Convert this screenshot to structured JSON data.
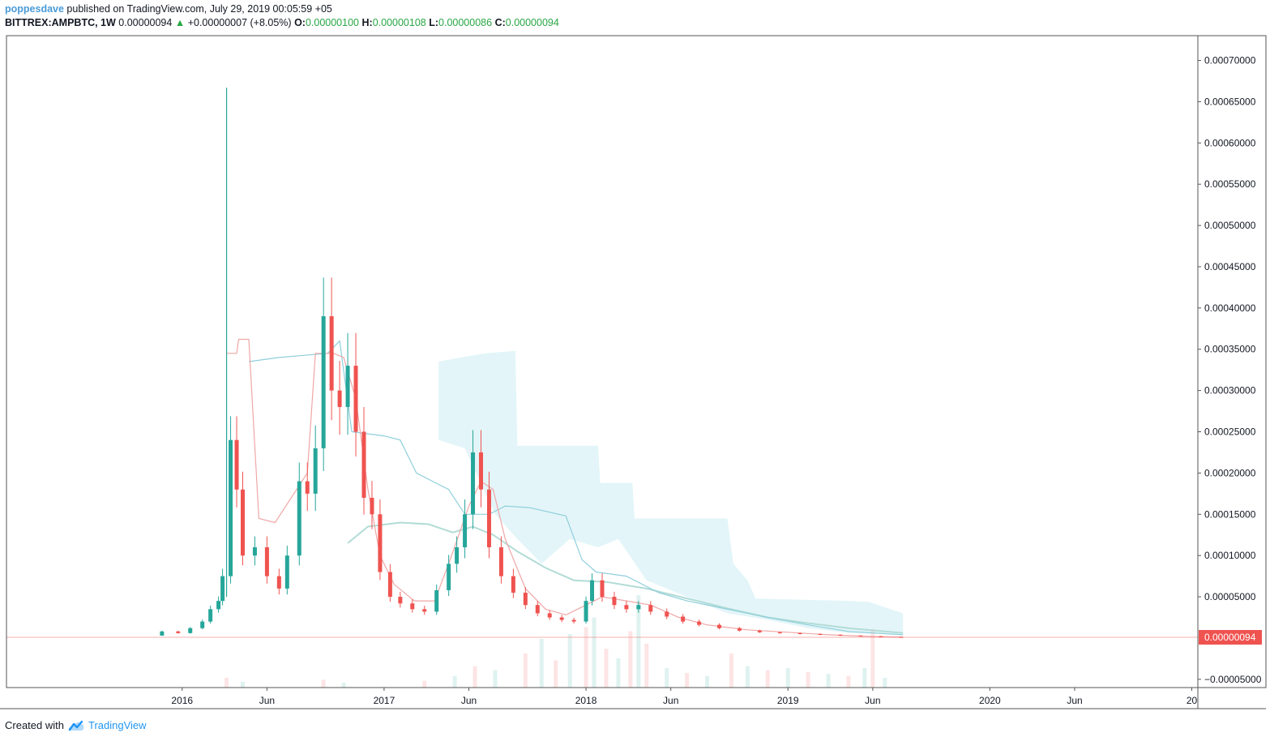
{
  "header": {
    "user": "poppesdave",
    "published_text": "published on TradingView.com, July 29, 2019 00:05:59 +05",
    "symbol": "BITTREX:AMPBTC, 1W",
    "last": "0.00000094",
    "change": "+0.00000007 (+8.05%)",
    "o_label": "O:",
    "o_value": "0.00000100",
    "h_label": "H:",
    "h_value": "0.00000108",
    "l_label": "L:",
    "l_value": "0.00000086",
    "c_label": "C:",
    "c_value": "0.00000094"
  },
  "footer": {
    "created_with": "Created with",
    "brand": "TradingView",
    "logo_icon": "tradingview-cloud-icon"
  },
  "colors": {
    "up": "#26a69a",
    "down": "#ef5350",
    "cloud": "#e3f5f8",
    "line_red": "#f0a6a6",
    "line_blue": "#8fcfdc",
    "line_sma": "#b2dcd6",
    "price_label_bg": "#ef5350",
    "grid_border": "#555555"
  },
  "chart_data": {
    "type": "candlestick",
    "timeframe": "1W",
    "symbol": "BITTREX:AMPBTC",
    "y_axis": {
      "ticks": [
        "0.00070000",
        "0.00065000",
        "0.00060000",
        "0.00055000",
        "0.00050000",
        "0.00045000",
        "0.00040000",
        "0.00035000",
        "0.00030000",
        "0.00025000",
        "0.00020000",
        "0.00015000",
        "0.00010000",
        "0.00005000",
        "−0.00005000"
      ],
      "tick_values": [
        0.0007,
        0.00065,
        0.0006,
        0.00055,
        0.0005,
        0.00045,
        0.0004,
        0.00035,
        0.0003,
        0.00025,
        0.0002,
        0.00015,
        0.0001,
        5e-05,
        -5e-05
      ],
      "range": [
        -6e-05,
        0.00073
      ]
    },
    "x_axis": {
      "ticks": [
        "2016",
        "Jun",
        "2017",
        "Jun",
        "2018",
        "Jun",
        "2019",
        "Jun",
        "2020",
        "Jun",
        "20"
      ],
      "tick_values": [
        2016.0,
        2016.42,
        2017.0,
        2017.42,
        2018.0,
        2018.42,
        2019.0,
        2019.42,
        2020.0,
        2020.42,
        2021.0
      ],
      "range": [
        2015.13,
        2021.03
      ]
    },
    "current_price": 9.4e-07,
    "current_price_label": "0.00000094",
    "price_series": [
      [
        2015.82,
        3e-06
      ],
      [
        2015.9,
        8e-06
      ],
      [
        2015.98,
        6e-06
      ],
      [
        2016.04,
        1.2e-05
      ],
      [
        2016.1,
        2e-05
      ],
      [
        2016.14,
        3.5e-05
      ],
      [
        2016.18,
        4.5e-05
      ],
      [
        2016.2,
        7.5e-05
      ],
      [
        2016.24,
        0.00024
      ],
      [
        2016.27,
        0.00018
      ],
      [
        2016.3,
        0.0001
      ],
      [
        2016.36,
        0.00011
      ],
      [
        2016.42,
        7.5e-05
      ],
      [
        2016.48,
        6e-05
      ],
      [
        2016.52,
        0.0001
      ],
      [
        2016.58,
        0.00019
      ],
      [
        2016.62,
        0.000175
      ],
      [
        2016.66,
        0.00023
      ],
      [
        2016.7,
        0.00039
      ],
      [
        2016.74,
        0.0003
      ],
      [
        2016.78,
        0.00028
      ],
      [
        2016.82,
        0.00033
      ],
      [
        2016.86,
        0.00025
      ],
      [
        2016.9,
        0.00017
      ],
      [
        2016.94,
        0.00015
      ],
      [
        2016.98,
        8e-05
      ],
      [
        2017.03,
        5e-05
      ],
      [
        2017.08,
        4.2e-05
      ],
      [
        2017.14,
        3.5e-05
      ],
      [
        2017.2,
        3.2e-05
      ],
      [
        2017.26,
        5.8e-05
      ],
      [
        2017.32,
        9e-05
      ],
      [
        2017.36,
        0.00011
      ],
      [
        2017.4,
        0.00015
      ],
      [
        2017.44,
        0.000225
      ],
      [
        2017.48,
        0.00018
      ],
      [
        2017.52,
        0.00011
      ],
      [
        2017.58,
        7.5e-05
      ],
      [
        2017.64,
        5.5e-05
      ],
      [
        2017.7,
        4e-05
      ],
      [
        2017.76,
        3e-05
      ],
      [
        2017.82,
        2.5e-05
      ],
      [
        2017.88,
        2.2e-05
      ],
      [
        2017.94,
        2e-05
      ],
      [
        2018.0,
        4.5e-05
      ],
      [
        2018.03,
        7e-05
      ],
      [
        2018.08,
        5e-05
      ],
      [
        2018.14,
        4e-05
      ],
      [
        2018.2,
        3.5e-05
      ],
      [
        2018.26,
        4e-05
      ],
      [
        2018.32,
        3.2e-05
      ],
      [
        2018.4,
        2.6e-05
      ],
      [
        2018.48,
        2e-05
      ],
      [
        2018.56,
        1.6e-05
      ],
      [
        2018.66,
        1.2e-05
      ],
      [
        2018.76,
        9e-06
      ],
      [
        2018.86,
        7e-06
      ],
      [
        2018.96,
        6e-06
      ],
      [
        2019.06,
        5e-06
      ],
      [
        2019.16,
        4e-06
      ],
      [
        2019.26,
        3e-06
      ],
      [
        2019.36,
        2.2e-06
      ],
      [
        2019.46,
        1.5e-06
      ],
      [
        2019.56,
        9.4e-07
      ]
    ],
    "spike": {
      "x": 2016.22,
      "high": 0.000667,
      "low": 5e-05
    },
    "red_line": [
      [
        2016.22,
        0.000345
      ],
      [
        2016.27,
        0.000345
      ],
      [
        2016.28,
        0.000362
      ],
      [
        2016.33,
        0.000362
      ],
      [
        2016.38,
        0.000145
      ],
      [
        2016.46,
        0.00014
      ],
      [
        2016.62,
        0.0002
      ],
      [
        2016.66,
        0.000345
      ],
      [
        2016.75,
        0.000345
      ],
      [
        2016.8,
        0.00034
      ],
      [
        2016.86,
        0.00029
      ],
      [
        2016.92,
        0.00018
      ],
      [
        2016.98,
        0.0001
      ],
      [
        2017.05,
        6.5e-05
      ],
      [
        2017.15,
        4.5e-05
      ],
      [
        2017.25,
        4.5e-05
      ],
      [
        2017.32,
        9e-05
      ],
      [
        2017.42,
        0.00016
      ],
      [
        2017.48,
        0.00019
      ],
      [
        2017.54,
        0.00018
      ],
      [
        2017.6,
        0.00012
      ],
      [
        2017.7,
        6e-05
      ],
      [
        2017.8,
        3.5e-05
      ],
      [
        2017.9,
        2.8e-05
      ],
      [
        2018.0,
        4e-05
      ],
      [
        2018.08,
        5e-05
      ],
      [
        2018.2,
        4.5e-05
      ],
      [
        2018.32,
        4e-05
      ],
      [
        2018.46,
        2.5e-05
      ],
      [
        2018.6,
        1.6e-05
      ],
      [
        2018.8,
        1e-05
      ],
      [
        2019.0,
        7e-06
      ],
      [
        2019.2,
        4e-06
      ],
      [
        2019.4,
        2e-06
      ],
      [
        2019.57,
        1e-06
      ]
    ],
    "blue_line": [
      [
        2016.33,
        0.000335
      ],
      [
        2016.48,
        0.00034
      ],
      [
        2016.72,
        0.000345
      ],
      [
        2016.78,
        0.00036
      ],
      [
        2016.84,
        0.00025
      ],
      [
        2017.0,
        0.000245
      ],
      [
        2017.08,
        0.00024
      ],
      [
        2017.16,
        0.0002
      ],
      [
        2017.24,
        0.00019
      ],
      [
        2017.32,
        0.00018
      ],
      [
        2017.4,
        0.00015
      ],
      [
        2017.52,
        0.00015
      ],
      [
        2017.6,
        0.00016
      ],
      [
        2017.72,
        0.000158
      ],
      [
        2017.9,
        0.000148
      ],
      [
        2017.98,
        9.5e-05
      ],
      [
        2018.05,
        8e-05
      ],
      [
        2018.2,
        7.5e-05
      ],
      [
        2018.36,
        5.5e-05
      ],
      [
        2018.5,
        4.5e-05
      ],
      [
        2018.7,
        3.5e-05
      ],
      [
        2018.9,
        2.5e-05
      ],
      [
        2019.1,
        1.6e-05
      ],
      [
        2019.3,
        8e-06
      ],
      [
        2019.57,
        4e-06
      ]
    ],
    "sma_line": [
      [
        2016.82,
        0.000115
      ],
      [
        2016.92,
        0.000135
      ],
      [
        2017.08,
        0.00014
      ],
      [
        2017.22,
        0.000138
      ],
      [
        2017.34,
        0.000128
      ],
      [
        2017.44,
        0.000135
      ],
      [
        2017.54,
        0.000125
      ],
      [
        2017.66,
        0.000105
      ],
      [
        2017.8,
        8.5e-05
      ],
      [
        2017.94,
        7e-05
      ],
      [
        2018.1,
        6.8e-05
      ],
      [
        2018.3,
        6e-05
      ],
      [
        2018.5,
        4.8e-05
      ],
      [
        2018.7,
        3.6e-05
      ],
      [
        2018.9,
        2.5e-05
      ],
      [
        2019.1,
        1.8e-05
      ],
      [
        2019.3,
        1.2e-05
      ],
      [
        2019.57,
        6e-06
      ]
    ],
    "cloud_top": [
      [
        2017.27,
        0.000335
      ],
      [
        2017.38,
        0.00034
      ],
      [
        2017.5,
        0.000345
      ],
      [
        2017.65,
        0.000348
      ],
      [
        2017.66,
        0.000233
      ],
      [
        2018.06,
        0.000233
      ],
      [
        2018.07,
        0.000188
      ],
      [
        2018.23,
        0.000188
      ],
      [
        2018.24,
        0.000145
      ],
      [
        2018.7,
        0.000145
      ],
      [
        2018.73,
        9e-05
      ],
      [
        2018.8,
        7e-05
      ],
      [
        2018.84,
        4.8e-05
      ],
      [
        2019.3,
        4.5e-05
      ],
      [
        2019.4,
        4.4e-05
      ],
      [
        2019.57,
        3e-05
      ]
    ],
    "cloud_bottom": [
      [
        2017.27,
        0.00024
      ],
      [
        2017.4,
        0.00023
      ],
      [
        2017.55,
        0.00015
      ],
      [
        2017.66,
        0.00012
      ],
      [
        2017.78,
        9e-05
      ],
      [
        2017.92,
        0.00012
      ],
      [
        2018.06,
        0.00011
      ],
      [
        2018.16,
        0.00012
      ],
      [
        2018.3,
        7e-05
      ],
      [
        2018.5,
        5e-05
      ],
      [
        2018.7,
        3e-05
      ],
      [
        2018.9,
        2.2e-05
      ],
      [
        2019.1,
        1.2e-05
      ],
      [
        2019.3,
        6e-06
      ],
      [
        2019.57,
        4e-06
      ]
    ],
    "volume_bars": [
      [
        2016.22,
        0.1
      ],
      [
        2016.3,
        0.06
      ],
      [
        2016.7,
        0.08
      ],
      [
        2016.8,
        0.05
      ],
      [
        2017.2,
        0.07
      ],
      [
        2017.35,
        0.12
      ],
      [
        2017.45,
        0.22
      ],
      [
        2017.55,
        0.18
      ],
      [
        2017.7,
        0.35
      ],
      [
        2017.78,
        0.5
      ],
      [
        2017.85,
        0.28
      ],
      [
        2017.92,
        0.55
      ],
      [
        2018.0,
        0.62
      ],
      [
        2018.04,
        0.72
      ],
      [
        2018.1,
        0.4
      ],
      [
        2018.16,
        0.3
      ],
      [
        2018.22,
        0.58
      ],
      [
        2018.26,
        0.95
      ],
      [
        2018.3,
        0.45
      ],
      [
        2018.4,
        0.2
      ],
      [
        2018.5,
        0.15
      ],
      [
        2018.6,
        0.12
      ],
      [
        2018.72,
        0.35
      ],
      [
        2018.8,
        0.22
      ],
      [
        2018.9,
        0.18
      ],
      [
        2019.0,
        0.2
      ],
      [
        2019.1,
        0.16
      ],
      [
        2019.2,
        0.14
      ],
      [
        2019.3,
        0.12
      ],
      [
        2019.38,
        0.2
      ],
      [
        2019.42,
        0.6
      ],
      [
        2019.48,
        0.1
      ]
    ]
  }
}
